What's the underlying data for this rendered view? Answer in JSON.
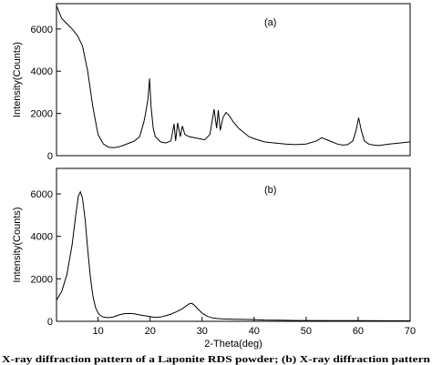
{
  "chart_data": [
    {
      "type": "line",
      "panel_label": "(a)",
      "xlabel": "",
      "ylabel": "Intensity(Counts)",
      "xlim": [
        2,
        70
      ],
      "ylim": [
        0,
        7200
      ],
      "x_ticks": [],
      "y_ticks": [
        0,
        2000,
        4000,
        6000
      ],
      "y_tick_labels": [
        "0",
        "2000",
        "4000",
        "6000"
      ],
      "series": [
        {
          "x": [
            2,
            3,
            4,
            5,
            6,
            7,
            8,
            9,
            10,
            11,
            12,
            13,
            14,
            15,
            16,
            17,
            18,
            18.8,
            19.2,
            19.6,
            19.9,
            20.2,
            20.6,
            21,
            22,
            23,
            24,
            24.6,
            24.9,
            25.3,
            25.8,
            26.2,
            26.7,
            27.5,
            28.5,
            29.5,
            30.5,
            31.5,
            32.3,
            32.8,
            33.1,
            33.5,
            34,
            34.6,
            35.2,
            36,
            37,
            38,
            39,
            40,
            42,
            44,
            46,
            48,
            50,
            52,
            53,
            54,
            55,
            56,
            57,
            58,
            59,
            59.6,
            60.1,
            60.6,
            61.2,
            62,
            63,
            64,
            66,
            68,
            70
          ],
          "y": [
            7100,
            6500,
            6250,
            6000,
            5700,
            5200,
            4000,
            2300,
            1000,
            550,
            400,
            380,
            420,
            500,
            600,
            700,
            900,
            1600,
            2100,
            2700,
            3650,
            2300,
            1300,
            900,
            650,
            600,
            700,
            1500,
            700,
            1550,
            900,
            1400,
            1000,
            900,
            850,
            800,
            750,
            1000,
            2200,
            1300,
            2150,
            1200,
            1800,
            2050,
            1900,
            1600,
            1300,
            1100,
            900,
            800,
            650,
            600,
            550,
            520,
            550,
            700,
            850,
            750,
            650,
            550,
            500,
            520,
            700,
            1200,
            1800,
            1200,
            700,
            550,
            500,
            480,
            550,
            600,
            650
          ]
        }
      ]
    },
    {
      "type": "line",
      "panel_label": "(b)",
      "xlabel": "2-Theta(deg)",
      "ylabel": "Intensity(Counts)",
      "xlim": [
        2,
        70
      ],
      "ylim": [
        0,
        7200
      ],
      "x_ticks": [
        10,
        20,
        30,
        40,
        50,
        60,
        70
      ],
      "x_tick_labels": [
        "10",
        "20",
        "30",
        "40",
        "50",
        "60",
        "70"
      ],
      "y_ticks": [
        0,
        2000,
        4000,
        6000
      ],
      "y_tick_labels": [
        "0",
        "2000",
        "4000",
        "6000"
      ],
      "series": [
        {
          "x": [
            2,
            3,
            4,
            5,
            5.7,
            6.2,
            6.6,
            7,
            7.5,
            8,
            8.5,
            9,
            9.5,
            10,
            10.5,
            11,
            12,
            13,
            14,
            15,
            16,
            17,
            18,
            19,
            20,
            21,
            22,
            23,
            24,
            25,
            26,
            26.8,
            27.5,
            28,
            28.5,
            29.2,
            30,
            31,
            32,
            33,
            34,
            35,
            36,
            38,
            40,
            42,
            44,
            46,
            48,
            50,
            55,
            60,
            65,
            70
          ],
          "y": [
            1000,
            1400,
            2200,
            3600,
            5000,
            5900,
            6100,
            5800,
            4800,
            3400,
            2100,
            1200,
            650,
            400,
            260,
            200,
            170,
            210,
            300,
            360,
            370,
            350,
            300,
            260,
            220,
            180,
            200,
            260,
            340,
            440,
            560,
            700,
            820,
            850,
            760,
            580,
            380,
            230,
            160,
            130,
            110,
            105,
            100,
            90,
            80,
            60,
            50,
            45,
            40,
            40,
            35,
            30,
            25,
            25
          ]
        }
      ]
    }
  ],
  "caption": "X-ray diffraction pattern of a Laponite RDS powder; (b) X-ray diffraction pattern"
}
